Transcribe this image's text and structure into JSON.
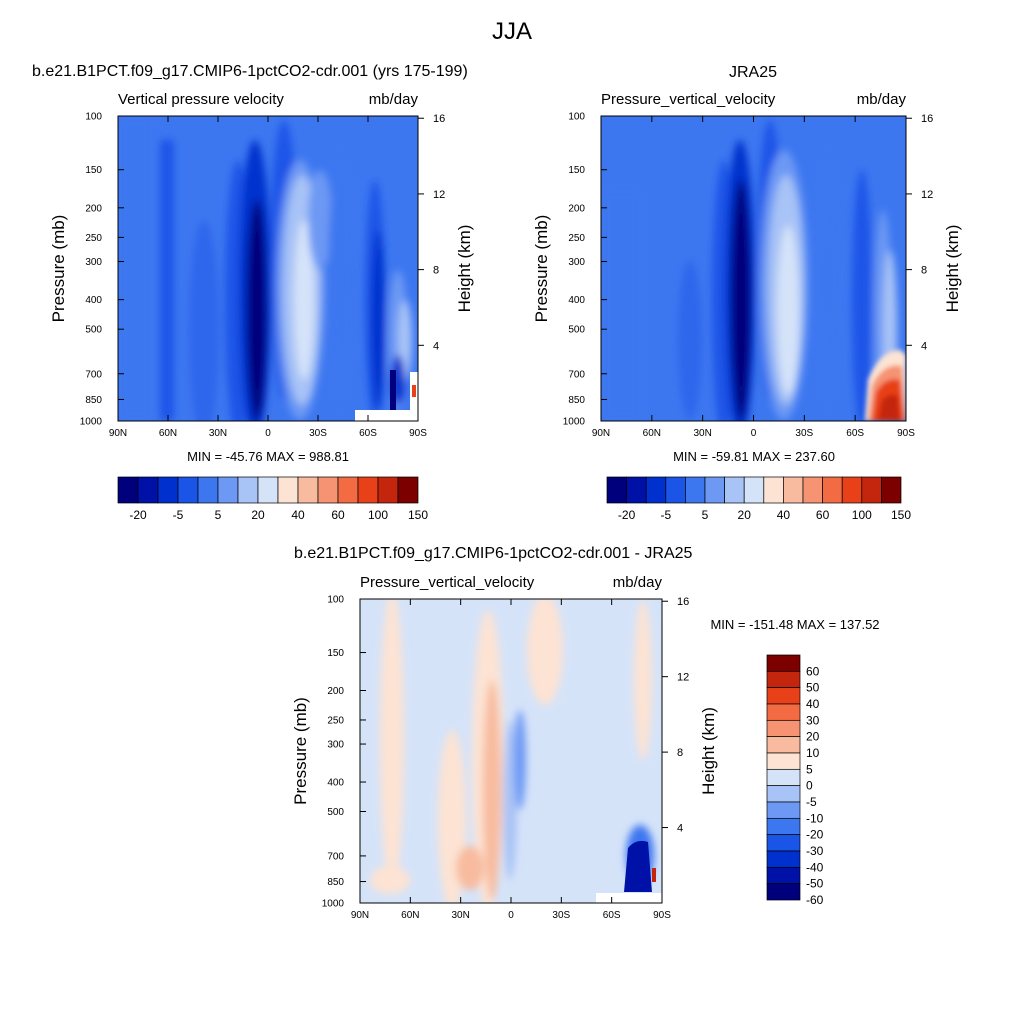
{
  "page_title": "JJA",
  "palette": {
    "full": [
      "#00007d",
      "#0011a8",
      "#0030cd",
      "#1a55e8",
      "#3d77f0",
      "#6d99f4",
      "#a8c3f6",
      "#d5e3f9",
      "#fde3d3",
      "#f8bb9f",
      "#f59372",
      "#f26b43",
      "#e84119",
      "#c4260d",
      "#7d0000"
    ],
    "diff": [
      "#00007d",
      "#0011a8",
      "#0030cd",
      "#1a55e8",
      "#3d77f0",
      "#6d99f4",
      "#a8c3f6",
      "#d5e3f9",
      "#fde3d3",
      "#f8bb9f",
      "#f59372",
      "#f26b43",
      "#e84119",
      "#c4260d",
      "#7d0000"
    ]
  },
  "chart_data": [
    {
      "type": "heatmap",
      "title": "b.e21.B1PCT.f09_g17.CMIP6-1pctCO2-cdr.001 (yrs 175-199)",
      "left_string": "Vertical pressure velocity",
      "right_string": "mb/day",
      "xlabel": "",
      "ylabel": "Pressure (mb)",
      "y2label": "Height (km)",
      "x_ticks": [
        "90N",
        "60N",
        "30N",
        "0",
        "30S",
        "60S",
        "90S"
      ],
      "y_ticks": [
        "100",
        "150",
        "200",
        "250",
        "300",
        "400",
        "500",
        "700",
        "850",
        "1000"
      ],
      "y2_ticks": [
        "16",
        "12",
        "8",
        "4"
      ],
      "stats": "MIN = -45.76  MAX = 988.81",
      "colorbar_labels": [
        "-20",
        "-5",
        "5",
        "20",
        "40",
        "60",
        "100",
        "150"
      ]
    },
    {
      "type": "heatmap",
      "title": "JRA25",
      "left_string": "Pressure_vertical_velocity",
      "right_string": "mb/day",
      "xlabel": "",
      "ylabel": "Pressure (mb)",
      "y2label": "Height (km)",
      "x_ticks": [
        "90N",
        "60N",
        "30N",
        "0",
        "30S",
        "60S",
        "90S"
      ],
      "y_ticks": [
        "100",
        "150",
        "200",
        "250",
        "300",
        "400",
        "500",
        "700",
        "850",
        "1000"
      ],
      "y2_ticks": [
        "16",
        "12",
        "8",
        "4"
      ],
      "stats": "MIN = -59.81  MAX = 237.60",
      "colorbar_labels": [
        "-20",
        "-5",
        "5",
        "20",
        "40",
        "60",
        "100",
        "150"
      ]
    },
    {
      "type": "heatmap",
      "title": "b.e21.B1PCT.f09_g17.CMIP6-1pctCO2-cdr.001 - JRA25",
      "left_string": "Pressure_vertical_velocity",
      "right_string": "mb/day",
      "xlabel": "",
      "ylabel": "Pressure (mb)",
      "y2label": "Height (km)",
      "x_ticks": [
        "90N",
        "60N",
        "30N",
        "0",
        "30S",
        "60S",
        "90S"
      ],
      "y_ticks": [
        "100",
        "150",
        "200",
        "250",
        "300",
        "400",
        "500",
        "700",
        "850",
        "1000"
      ],
      "y2_ticks": [
        "16",
        "12",
        "8",
        "4"
      ],
      "stats": "MIN = -151.48  MAX = 137.52",
      "colorbar_labels": [
        "60",
        "50",
        "40",
        "30",
        "20",
        "10",
        "5",
        "0",
        "-5",
        "-10",
        "-20",
        "-30",
        "-40",
        "-50",
        "-60"
      ]
    }
  ]
}
